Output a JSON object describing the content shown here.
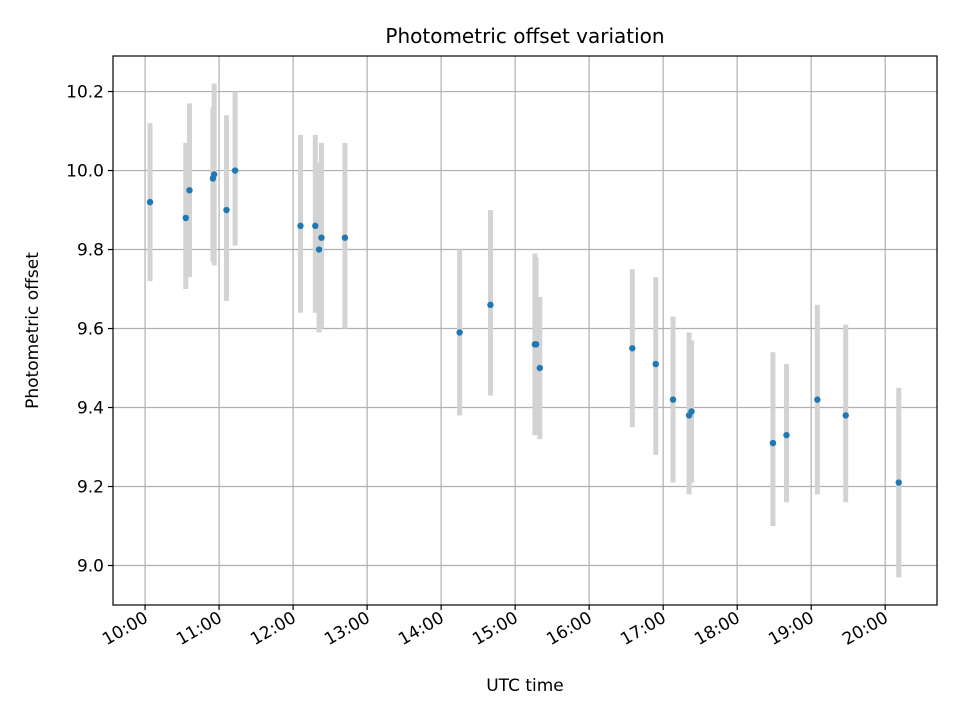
{
  "chart_data": {
    "type": "scatter",
    "title": "Photometric offset variation",
    "xlabel": "UTC time",
    "ylabel": "Photometric offset",
    "x_is_time": true,
    "xlim": [
      "09:34",
      "20:42"
    ],
    "ylim": [
      8.9,
      10.29
    ],
    "grid": true,
    "legend": "none",
    "x_ticks": [
      "10:00",
      "11:00",
      "12:00",
      "13:00",
      "14:00",
      "15:00",
      "16:00",
      "17:00",
      "18:00",
      "19:00",
      "20:00"
    ],
    "y_ticks": [
      "9.0",
      "9.2",
      "9.4",
      "9.6",
      "9.8",
      "10.0",
      "10.2"
    ],
    "colors": {
      "points": "#1f77b4",
      "errorbars": "#d3d3d3",
      "grid": "#b0b0b0"
    },
    "series": [
      {
        "values": [
          {
            "x": "10:04",
            "y": 9.92,
            "lo": 9.72,
            "hi": 10.12
          },
          {
            "x": "10:33",
            "y": 9.88,
            "lo": 9.7,
            "hi": 10.07
          },
          {
            "x": "10:36",
            "y": 9.95,
            "lo": 9.73,
            "hi": 10.17
          },
          {
            "x": "10:55",
            "y": 9.98,
            "lo": 9.77,
            "hi": 10.16
          },
          {
            "x": "10:56",
            "y": 9.99,
            "lo": 9.76,
            "hi": 10.22
          },
          {
            "x": "11:06",
            "y": 9.9,
            "lo": 9.67,
            "hi": 10.14
          },
          {
            "x": "11:13",
            "y": 10.0,
            "lo": 9.81,
            "hi": 10.2
          },
          {
            "x": "12:06",
            "y": 9.86,
            "lo": 9.64,
            "hi": 10.09
          },
          {
            "x": "12:18",
            "y": 9.86,
            "lo": 9.64,
            "hi": 10.09
          },
          {
            "x": "12:21",
            "y": 9.8,
            "lo": 9.59,
            "hi": 10.02
          },
          {
            "x": "12:23",
            "y": 9.83,
            "lo": 9.6,
            "hi": 10.07
          },
          {
            "x": "12:42",
            "y": 9.83,
            "lo": 9.6,
            "hi": 10.07
          },
          {
            "x": "14:15",
            "y": 9.59,
            "lo": 9.38,
            "hi": 9.8
          },
          {
            "x": "14:40",
            "y": 9.66,
            "lo": 9.43,
            "hi": 9.9
          },
          {
            "x": "15:16",
            "y": 9.56,
            "lo": 9.33,
            "hi": 9.79
          },
          {
            "x": "15:17",
            "y": 9.56,
            "lo": 9.35,
            "hi": 9.78
          },
          {
            "x": "15:20",
            "y": 9.5,
            "lo": 9.32,
            "hi": 9.68
          },
          {
            "x": "16:35",
            "y": 9.55,
            "lo": 9.35,
            "hi": 9.75
          },
          {
            "x": "16:54",
            "y": 9.51,
            "lo": 9.28,
            "hi": 9.73
          },
          {
            "x": "17:08",
            "y": 9.42,
            "lo": 9.21,
            "hi": 9.63
          },
          {
            "x": "17:21",
            "y": 9.38,
            "lo": 9.18,
            "hi": 9.59
          },
          {
            "x": "17:23",
            "y": 9.39,
            "lo": 9.21,
            "hi": 9.57
          },
          {
            "x": "18:29",
            "y": 9.31,
            "lo": 9.1,
            "hi": 9.54
          },
          {
            "x": "18:40",
            "y": 9.33,
            "lo": 9.16,
            "hi": 9.51
          },
          {
            "x": "19:05",
            "y": 9.42,
            "lo": 9.18,
            "hi": 9.66
          },
          {
            "x": "19:28",
            "y": 9.38,
            "lo": 9.16,
            "hi": 9.61
          },
          {
            "x": "20:11",
            "y": 9.21,
            "lo": 8.97,
            "hi": 9.45
          }
        ]
      }
    ]
  }
}
